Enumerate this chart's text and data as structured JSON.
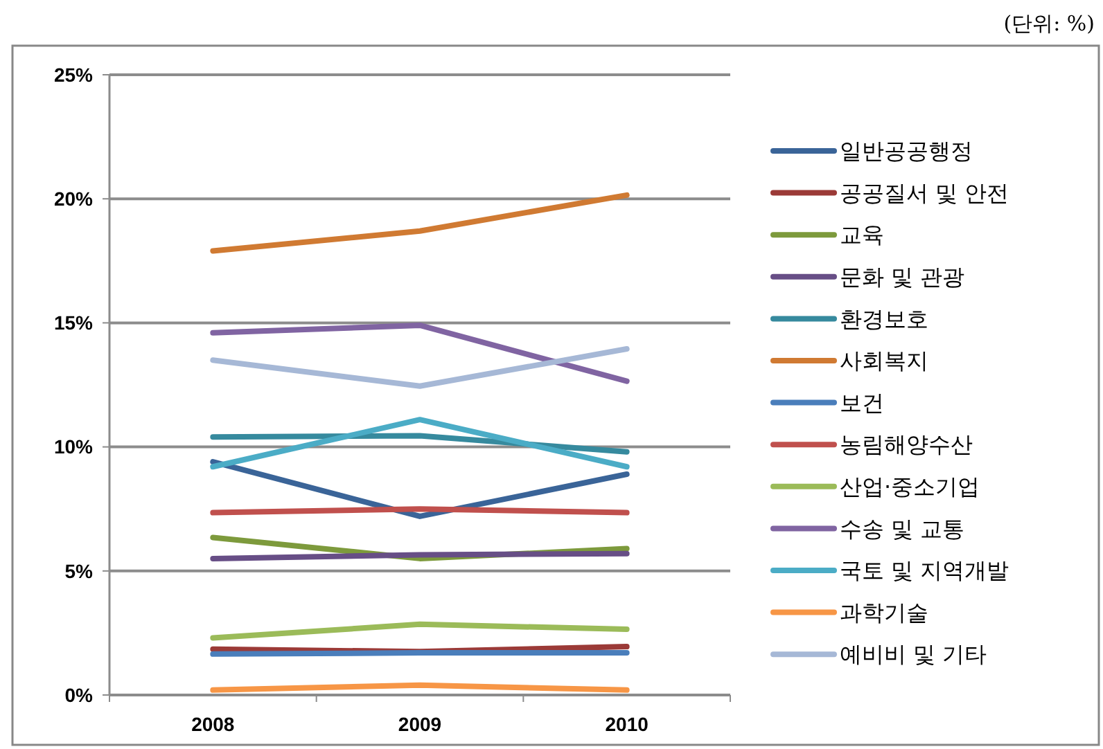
{
  "chart_data": {
    "type": "line",
    "categories": [
      "2008",
      "2009",
      "2010"
    ],
    "series": [
      {
        "name": "일반공공행정",
        "color": "#3a6498",
        "values": [
          9.4,
          7.2,
          8.9
        ]
      },
      {
        "name": "공공질서 및 안전",
        "color": "#9b3a37",
        "values": [
          1.85,
          1.75,
          1.95
        ]
      },
      {
        "name": "교육",
        "color": "#7d9a3c",
        "values": [
          6.35,
          5.5,
          5.9
        ]
      },
      {
        "name": "문화 및 관광",
        "color": "#674e86",
        "values": [
          5.5,
          5.65,
          5.7
        ]
      },
      {
        "name": "환경보호",
        "color": "#368a9e",
        "values": [
          10.4,
          10.45,
          9.8
        ]
      },
      {
        "name": "사회복지",
        "color": "#d07a32",
        "values": [
          17.9,
          18.7,
          20.15
        ]
      },
      {
        "name": "보건",
        "color": "#4a7ebb",
        "values": [
          1.65,
          1.7,
          1.7
        ]
      },
      {
        "name": "농림해양수산",
        "color": "#c0504d",
        "values": [
          7.35,
          7.5,
          7.35
        ]
      },
      {
        "name": "산업·중소기업",
        "color": "#9bbb59",
        "values": [
          2.3,
          2.85,
          2.65
        ]
      },
      {
        "name": "수송 및 교통",
        "color": "#8064a2",
        "values": [
          14.6,
          14.9,
          12.65
        ]
      },
      {
        "name": "국토 및 지역개발",
        "color": "#4bacc6",
        "values": [
          9.2,
          11.1,
          9.2
        ]
      },
      {
        "name": "과학기술",
        "color": "#f79646",
        "values": [
          0.2,
          0.4,
          0.2
        ]
      },
      {
        "name": "예비비 및 기타",
        "color": "#a6b8d6",
        "values": [
          13.5,
          12.45,
          13.95
        ]
      }
    ],
    "ylim": [
      0,
      25
    ],
    "yticks": [
      {
        "value": 0,
        "label": "0%"
      },
      {
        "value": 5,
        "label": "5%"
      },
      {
        "value": 10,
        "label": "10%"
      },
      {
        "value": 15,
        "label": "15%"
      },
      {
        "value": 20,
        "label": "20%"
      },
      {
        "value": 25,
        "label": "25%"
      }
    ],
    "grid": "y",
    "legend": "right",
    "marker": "none",
    "line_style": "solid",
    "annotations": [
      "(단위: %)"
    ]
  }
}
